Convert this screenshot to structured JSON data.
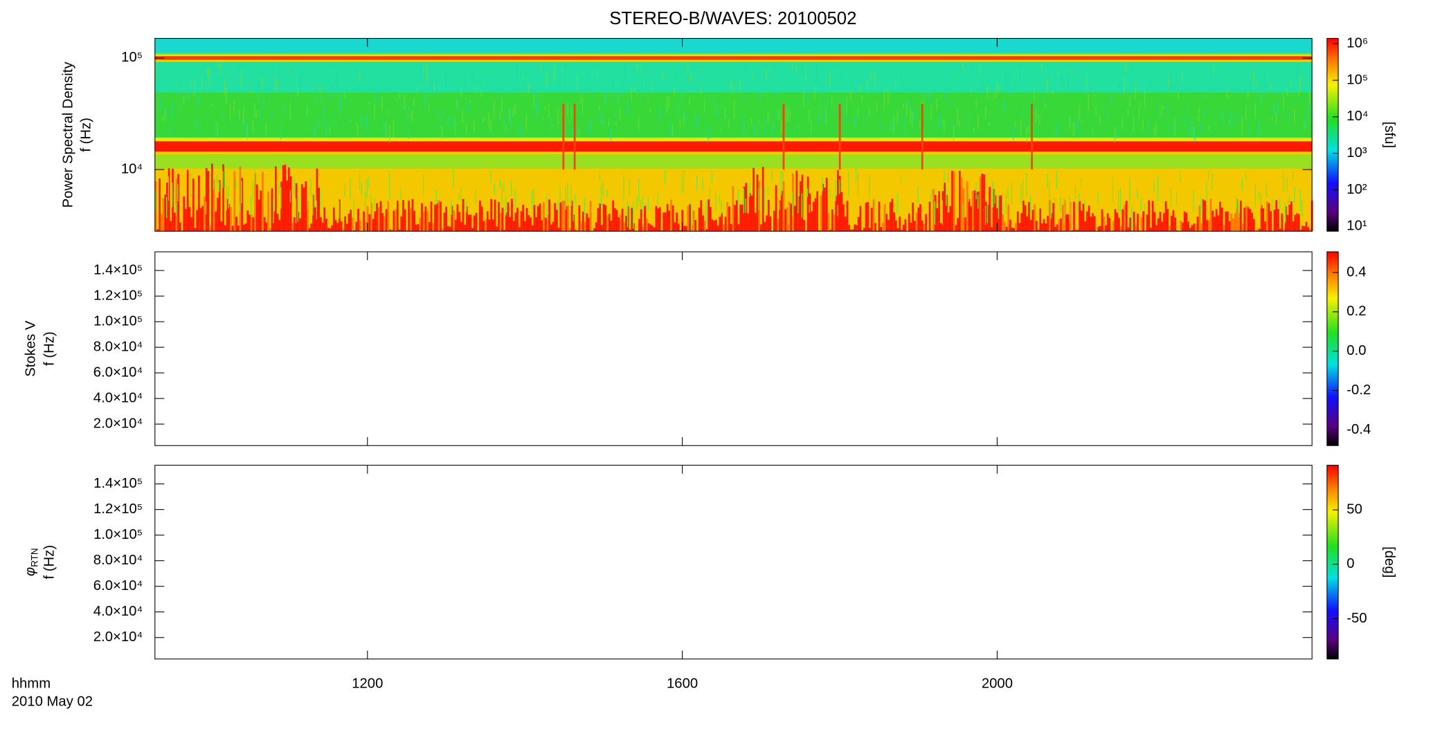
{
  "title": "STEREO-B/WAVES: 20100502",
  "x_label": "hhmm",
  "date_label": "2010 May 02",
  "chart_data": [
    {
      "type": "spectrogram",
      "ylabel": "Power Spectral Density",
      "ylabel_unit": "f (Hz)",
      "log_y": true,
      "xlim": [
        558,
        1440
      ],
      "ylim": [
        2800,
        150000
      ],
      "yticks": [
        {
          "value": 10000,
          "label": "10⁴"
        },
        {
          "value": 100000,
          "label": "10⁵"
        }
      ],
      "colorbar": {
        "log": true,
        "lim": [
          7.4,
          1400000
        ],
        "ticks": [
          {
            "value": 10,
            "label": "10¹"
          },
          {
            "value": 100,
            "label": "10²"
          },
          {
            "value": 1000,
            "label": "10³"
          },
          {
            "value": 10000,
            "label": "10⁴"
          },
          {
            "value": 100000,
            "label": "10⁵"
          },
          {
            "value": 1000000,
            "label": "10⁶"
          }
        ],
        "label": "[sfu]"
      }
    },
    {
      "type": "spectrogram",
      "ylabel": "Stokes V",
      "ylabel_unit": "f (Hz)",
      "log_y": false,
      "xlim": [
        558,
        1440
      ],
      "ylim": [
        3200,
        154600
      ],
      "yticks": [
        {
          "value": 20000,
          "label": "2.0×10⁴"
        },
        {
          "value": 40000,
          "label": "4.0×10⁴"
        },
        {
          "value": 60000,
          "label": "6.0×10⁴"
        },
        {
          "value": 80000,
          "label": "8.0×10⁴"
        },
        {
          "value": 100000,
          "label": "1.0×10⁵"
        },
        {
          "value": 120000,
          "label": "1.2×10⁵"
        },
        {
          "value": 140000,
          "label": "1.4×10⁵"
        }
      ],
      "colorbar": {
        "log": false,
        "lim": [
          -0.48,
          0.505
        ],
        "ticks": [
          -0.4,
          -0.2,
          {
            "value": 0,
            "label": "0.0"
          },
          0.2,
          0.4
        ]
      }
    },
    {
      "type": "spectrogram",
      "ylabel": "φ",
      "ylabel_sub": "RTN",
      "ylabel_unit": "f (Hz)",
      "log_y": false,
      "xlim": [
        558,
        1440
      ],
      "xticks": [
        {
          "value": 720,
          "label": "1200"
        },
        {
          "value": 960,
          "label": "1600"
        },
        {
          "value": 1200,
          "label": "2000"
        }
      ],
      "ylim": [
        3200,
        154600
      ],
      "yticks": [
        {
          "value": 20000,
          "label": "2.0×10⁴"
        },
        {
          "value": 40000,
          "label": "4.0×10⁴"
        },
        {
          "value": 60000,
          "label": "6.0×10⁴"
        },
        {
          "value": 80000,
          "label": "8.0×10⁴"
        },
        {
          "value": 100000,
          "label": "1.0×10⁵"
        },
        {
          "value": 120000,
          "label": "1.2×10⁵"
        },
        {
          "value": 140000,
          "label": "1.4×10⁵"
        }
      ],
      "colorbar": {
        "log": false,
        "lim": [
          -87,
          91
        ],
        "ticks": [
          -50,
          0,
          50
        ],
        "label": "[deg]"
      }
    }
  ]
}
